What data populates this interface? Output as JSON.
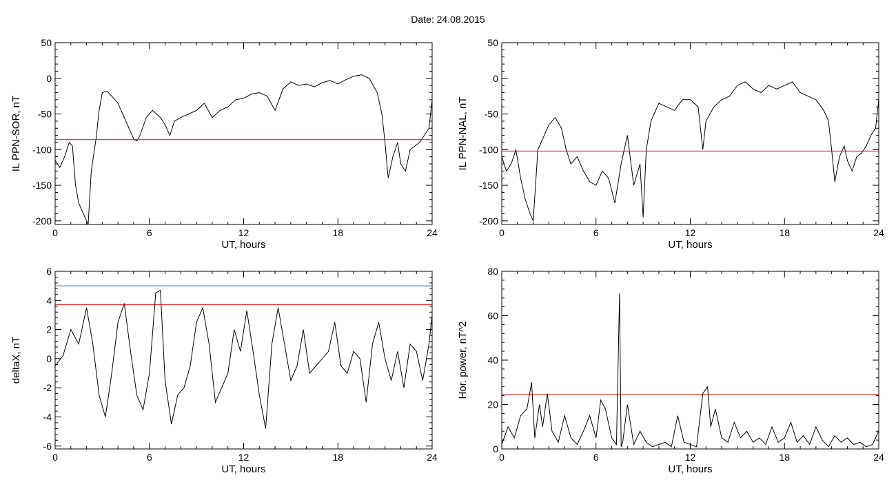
{
  "header": {
    "title": "Date:  24.08.2015"
  },
  "colors": {
    "threshold_red": "#e00000",
    "threshold_blue": "#1f6fd0",
    "trace": "#000000",
    "highlight_trace": "#1565c0",
    "marker_red": "#d11",
    "marker_green": "#2bb02b",
    "marker_blue": "#1f6fd0"
  },
  "chart_data": [
    {
      "type": "line",
      "panel": "top-left",
      "title": "",
      "xlabel": "UT, hours",
      "ylabel": "IL PPN-SOR, nT",
      "xlim": [
        0,
        24
      ],
      "ylim": [
        -205,
        50
      ],
      "xticks": [
        0,
        6,
        12,
        18,
        24
      ],
      "yticks": [
        -200,
        -150,
        -100,
        -50,
        0,
        50
      ],
      "thresholds": [
        {
          "y": -86,
          "color": "red"
        }
      ],
      "series": [
        {
          "x": [
            0,
            0.3,
            0.6,
            0.9,
            1.1,
            1.3,
            1.5,
            1.8,
            2.0,
            2.1,
            2.3,
            2.6,
            2.8,
            3.0,
            3.3,
            3.6,
            4.0,
            4.5,
            5.0,
            5.2,
            5.4,
            5.8,
            6.2,
            6.7,
            7.0,
            7.3,
            7.6,
            8.0,
            8.5,
            9.0,
            9.5,
            10.0,
            10.5,
            11.0,
            11.5,
            12.0,
            12.5,
            13.0,
            13.5,
            14.0,
            14.5,
            15.0,
            15.5,
            16.0,
            16.5,
            17.0,
            17.5,
            18.0,
            18.5,
            19.0,
            19.5,
            20.0,
            20.5,
            20.8,
            21.0,
            21.2,
            21.5,
            21.8,
            22.0,
            22.3,
            22.6,
            22.9,
            23.2,
            23.5,
            23.8,
            24.0
          ],
          "y": [
            -115,
            -125,
            -110,
            -90,
            -95,
            -150,
            -175,
            -190,
            -200,
            -205,
            -130,
            -85,
            -45,
            -20,
            -18,
            -25,
            -35,
            -60,
            -85,
            -88,
            -80,
            -55,
            -45,
            -55,
            -65,
            -80,
            -60,
            -55,
            -50,
            -45,
            -35,
            -55,
            -45,
            -40,
            -30,
            -28,
            -22,
            -20,
            -25,
            -45,
            -15,
            -5,
            -10,
            -8,
            -12,
            -6,
            -3,
            -8,
            -2,
            3,
            5,
            0,
            -20,
            -50,
            -90,
            -140,
            -110,
            -90,
            -120,
            -130,
            -100,
            -95,
            -90,
            -80,
            -70,
            -30
          ]
        }
      ]
    },
    {
      "type": "line",
      "panel": "top-right",
      "title": "",
      "xlabel": "UT, hours",
      "ylabel": "IL PPN-NAL, nT",
      "xlim": [
        0,
        24
      ],
      "ylim": [
        -205,
        50
      ],
      "xticks": [
        0,
        6,
        12,
        18,
        24
      ],
      "yticks": [
        -200,
        -150,
        -100,
        -50,
        0,
        50
      ],
      "thresholds": [
        {
          "y": -102,
          "color": "red"
        }
      ],
      "series": [
        {
          "x": [
            0,
            0.3,
            0.6,
            0.9,
            1.2,
            1.5,
            1.8,
            2.0,
            2.3,
            2.6,
            3.0,
            3.4,
            3.8,
            4.1,
            4.4,
            4.8,
            5.2,
            5.6,
            6.0,
            6.4,
            6.8,
            7.2,
            7.6,
            8.0,
            8.4,
            8.8,
            9.0,
            9.2,
            9.5,
            10.0,
            10.5,
            11.0,
            11.5,
            12.0,
            12.5,
            12.8,
            13.0,
            13.5,
            14.0,
            14.5,
            15.0,
            15.5,
            16.0,
            16.5,
            17.0,
            17.5,
            18.0,
            18.5,
            19.0,
            19.5,
            20.0,
            20.5,
            20.8,
            21.0,
            21.2,
            21.5,
            21.8,
            22.0,
            22.3,
            22.6,
            22.9,
            23.2,
            23.5,
            23.8,
            24.0
          ],
          "y": [
            -110,
            -130,
            -120,
            -100,
            -140,
            -170,
            -190,
            -200,
            -100,
            -85,
            -65,
            -55,
            -70,
            -100,
            -120,
            -110,
            -130,
            -145,
            -150,
            -130,
            -140,
            -175,
            -120,
            -80,
            -150,
            -120,
            -195,
            -100,
            -60,
            -35,
            -40,
            -45,
            -30,
            -30,
            -40,
            -100,
            -60,
            -40,
            -30,
            -25,
            -10,
            -5,
            -15,
            -20,
            -10,
            -15,
            -10,
            -5,
            -20,
            -25,
            -30,
            -45,
            -60,
            -100,
            -145,
            -110,
            -95,
            -115,
            -130,
            -110,
            -105,
            -95,
            -80,
            -70,
            -30
          ]
        }
      ]
    },
    {
      "type": "line",
      "panel": "bottom-left",
      "title": "",
      "xlabel": "UT, hours",
      "ylabel": "deltaX, nT",
      "xlim": [
        0,
        24
      ],
      "ylim": [
        -6.2,
        6
      ],
      "xticks": [
        0,
        6,
        12,
        18,
        24
      ],
      "yticks": [
        -6,
        -4,
        -2,
        0,
        2,
        4,
        6
      ],
      "thresholds": [
        {
          "y": 5.0,
          "color": "blue"
        },
        {
          "y": 3.7,
          "color": "red"
        }
      ],
      "series": [
        {
          "x": [
            0,
            0.5,
            1.0,
            1.5,
            2.0,
            2.4,
            2.8,
            3.2,
            3.6,
            4.0,
            4.4,
            4.8,
            5.2,
            5.6,
            6.0,
            6.4,
            6.7,
            7.0,
            7.4,
            7.8,
            8.2,
            8.6,
            9.0,
            9.4,
            9.8,
            10.2,
            10.6,
            11.0,
            11.4,
            11.8,
            12.2,
            12.6,
            13.0,
            13.4,
            13.8,
            14.2,
            14.6,
            15.0,
            15.4,
            15.8,
            16.2,
            16.6,
            17.0,
            17.4,
            17.8,
            18.2,
            18.6,
            19.0,
            19.4,
            19.8,
            20.2,
            20.6,
            21.0,
            21.4,
            21.8,
            22.2,
            22.6,
            23.0,
            23.4,
            23.8,
            24.0
          ],
          "y": [
            -0.5,
            0.2,
            2.0,
            1.0,
            3.5,
            1.0,
            -2.5,
            -4.0,
            -1.0,
            2.5,
            3.8,
            0.5,
            -2.5,
            -3.5,
            -1.0,
            4.5,
            4.7,
            -1.5,
            -4.5,
            -2.5,
            -2.0,
            -0.5,
            2.5,
            3.5,
            1.0,
            -3.0,
            -2.0,
            -1.0,
            2.0,
            0.5,
            3.3,
            0.5,
            -2.5,
            -4.8,
            1.0,
            3.5,
            1.0,
            -1.5,
            -0.5,
            2.0,
            -1.0,
            -0.5,
            0.0,
            0.5,
            2.5,
            -0.5,
            -1.0,
            0.5,
            0.0,
            -3.0,
            1.0,
            2.5,
            0.0,
            -1.5,
            0.5,
            -2.0,
            1.0,
            0.5,
            -1.5,
            1.0,
            3.0
          ]
        }
      ]
    },
    {
      "type": "line",
      "panel": "bottom-right",
      "title": "",
      "xlabel": "UT, hours",
      "ylabel": "Hor. power, nT^2",
      "xlim": [
        0,
        24
      ],
      "ylim": [
        0,
        80
      ],
      "xticks": [
        0,
        6,
        12,
        18,
        24
      ],
      "yticks": [
        0,
        20,
        40,
        60,
        80
      ],
      "thresholds": [
        {
          "y": 24.5,
          "color": "red"
        }
      ],
      "series": [
        {
          "x": [
            0,
            0.4,
            0.8,
            1.2,
            1.6,
            1.9,
            2.1,
            2.4,
            2.6,
            2.9,
            3.2,
            3.6,
            4.0,
            4.4,
            4.8,
            5.2,
            5.6,
            6.0,
            6.3,
            6.6,
            7.0,
            7.3,
            7.5,
            7.6,
            7.7,
            8.0,
            8.4,
            8.8,
            9.2,
            9.6,
            10.0,
            10.4,
            10.8,
            11.2,
            11.6,
            12.0,
            12.4,
            12.8,
            13.1,
            13.3,
            13.6,
            14.0,
            14.4,
            14.8,
            15.2,
            15.6,
            16.0,
            16.4,
            16.8,
            17.2,
            17.6,
            18.0,
            18.4,
            18.8,
            19.2,
            19.6,
            20.0,
            20.4,
            20.8,
            21.2,
            21.6,
            22.0,
            22.4,
            22.8,
            23.2,
            23.6,
            24.0
          ],
          "y": [
            2,
            10,
            5,
            15,
            18,
            30,
            5,
            20,
            10,
            25,
            8,
            3,
            15,
            5,
            2,
            8,
            15,
            5,
            22,
            18,
            5,
            2,
            70,
            1,
            3,
            20,
            2,
            8,
            3,
            1,
            2,
            3,
            1,
            15,
            3,
            2,
            1,
            25,
            28,
            10,
            18,
            5,
            3,
            12,
            5,
            8,
            3,
            5,
            2,
            10,
            3,
            5,
            12,
            3,
            6,
            2,
            10,
            4,
            1,
            6,
            3,
            5,
            2,
            3,
            1,
            2,
            8
          ]
        }
      ]
    }
  ]
}
